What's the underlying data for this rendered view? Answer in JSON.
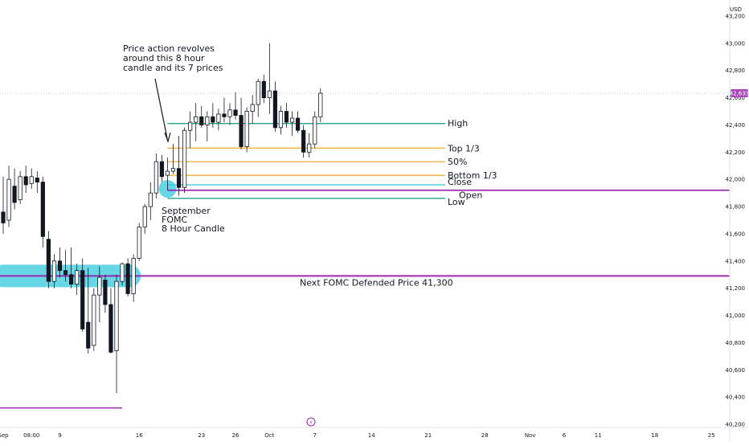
{
  "chart_data": {
    "type": "candlestick",
    "currency_label": "USD",
    "y_axis": {
      "min": 40200,
      "max": 43200,
      "ticks": [
        "40,200",
        "40,400",
        "40,600",
        "40,800",
        "41,000",
        "41,200",
        "41,400",
        "41,600",
        "41,800",
        "42,000",
        "42,200",
        "42,400",
        "42,600",
        "42,800",
        "43,000",
        "43,200"
      ]
    },
    "current_price": {
      "value": 42633,
      "label": "42,633"
    },
    "x_axis": {
      "labels": [
        {
          "text": "Sep",
          "bar": 0
        },
        {
          "text": "08:00",
          "bar": 5
        },
        {
          "text": "9",
          "bar": 10
        },
        {
          "text": "16",
          "bar": 24
        },
        {
          "text": "23",
          "bar": 35
        },
        {
          "text": "26",
          "bar": 41
        },
        {
          "text": "Oct",
          "bar": 47
        },
        {
          "text": "7",
          "bar": 55
        },
        {
          "text": "14",
          "bar": 65
        },
        {
          "text": "21",
          "bar": 75
        },
        {
          "text": "28",
          "bar": 85
        },
        {
          "text": "Nov",
          "bar": 93
        },
        {
          "text": "6",
          "bar": 99
        },
        {
          "text": "11",
          "bar": 105
        },
        {
          "text": "18",
          "bar": 115
        },
        {
          "text": "25",
          "bar": 125
        }
      ],
      "total_bars": 128
    },
    "candles": [
      {
        "o": 41760,
        "h": 42020,
        "l": 41600,
        "c": 41680
      },
      {
        "o": 41700,
        "h": 42100,
        "l": 41650,
        "c": 42000
      },
      {
        "o": 41950,
        "h": 42080,
        "l": 41780,
        "c": 41830
      },
      {
        "o": 41850,
        "h": 42060,
        "l": 41820,
        "c": 42020
      },
      {
        "o": 42020,
        "h": 42100,
        "l": 41900,
        "c": 41960
      },
      {
        "o": 41970,
        "h": 42080,
        "l": 41930,
        "c": 42020
      },
      {
        "o": 42010,
        "h": 42060,
        "l": 41900,
        "c": 41980
      },
      {
        "o": 41980,
        "h": 42020,
        "l": 41500,
        "c": 41580
      },
      {
        "o": 41560,
        "h": 41620,
        "l": 41200,
        "c": 41250
      },
      {
        "o": 41250,
        "h": 41450,
        "l": 41200,
        "c": 41400
      },
      {
        "o": 41400,
        "h": 41500,
        "l": 41280,
        "c": 41330
      },
      {
        "o": 41330,
        "h": 41480,
        "l": 41250,
        "c": 41300
      },
      {
        "o": 41300,
        "h": 41500,
        "l": 41200,
        "c": 41230
      },
      {
        "o": 41230,
        "h": 41380,
        "l": 41150,
        "c": 41330
      },
      {
        "o": 41330,
        "h": 41420,
        "l": 40880,
        "c": 40900
      },
      {
        "o": 40950,
        "h": 41350,
        "l": 40720,
        "c": 40760
      },
      {
        "o": 40780,
        "h": 41200,
        "l": 40740,
        "c": 41150
      },
      {
        "o": 41150,
        "h": 41360,
        "l": 40950,
        "c": 41280
      },
      {
        "o": 41260,
        "h": 41300,
        "l": 41020,
        "c": 41080
      },
      {
        "o": 41080,
        "h": 41200,
        "l": 40720,
        "c": 40730
      },
      {
        "o": 40740,
        "h": 41300,
        "l": 40430,
        "c": 41250
      },
      {
        "o": 41250,
        "h": 41390,
        "l": 41220,
        "c": 41380
      },
      {
        "o": 41380,
        "h": 41420,
        "l": 41140,
        "c": 41160
      },
      {
        "o": 41160,
        "h": 41450,
        "l": 41100,
        "c": 41420
      },
      {
        "o": 41420,
        "h": 41680,
        "l": 41400,
        "c": 41650
      },
      {
        "o": 41650,
        "h": 41820,
        "l": 41600,
        "c": 41800
      },
      {
        "o": 41800,
        "h": 41980,
        "l": 41700,
        "c": 41900
      },
      {
        "o": 41900,
        "h": 42190,
        "l": 41860,
        "c": 42130
      },
      {
        "o": 42130,
        "h": 42180,
        "l": 41980,
        "c": 42020
      },
      {
        "o": 42030,
        "h": 42160,
        "l": 41920,
        "c": 42060
      },
      {
        "o": 42060,
        "h": 42260,
        "l": 42040,
        "c": 42080
      },
      {
        "o": 42080,
        "h": 42320,
        "l": 41880,
        "c": 41940
      },
      {
        "o": 41940,
        "h": 42380,
        "l": 41900,
        "c": 42360
      },
      {
        "o": 42360,
        "h": 42500,
        "l": 42230,
        "c": 42420
      },
      {
        "o": 42420,
        "h": 42560,
        "l": 42280,
        "c": 42460
      },
      {
        "o": 42460,
        "h": 42540,
        "l": 42380,
        "c": 42400
      },
      {
        "o": 42400,
        "h": 42500,
        "l": 42280,
        "c": 42460
      },
      {
        "o": 42460,
        "h": 42560,
        "l": 42380,
        "c": 42420
      },
      {
        "o": 42420,
        "h": 42520,
        "l": 42360,
        "c": 42480
      },
      {
        "o": 42480,
        "h": 42600,
        "l": 42420,
        "c": 42460
      },
      {
        "o": 42460,
        "h": 42560,
        "l": 42400,
        "c": 42510
      },
      {
        "o": 42510,
        "h": 42640,
        "l": 42440,
        "c": 42470
      },
      {
        "o": 42470,
        "h": 42600,
        "l": 42220,
        "c": 42240
      },
      {
        "o": 42240,
        "h": 42530,
        "l": 42200,
        "c": 42500
      },
      {
        "o": 42500,
        "h": 42620,
        "l": 42410,
        "c": 42550
      },
      {
        "o": 42550,
        "h": 42740,
        "l": 42460,
        "c": 42720
      },
      {
        "o": 42720,
        "h": 42770,
        "l": 42560,
        "c": 42600
      },
      {
        "o": 42600,
        "h": 43000,
        "l": 42480,
        "c": 42650
      },
      {
        "o": 42650,
        "h": 42720,
        "l": 42350,
        "c": 42380
      },
      {
        "o": 42380,
        "h": 42540,
        "l": 42330,
        "c": 42500
      },
      {
        "o": 42500,
        "h": 42560,
        "l": 42380,
        "c": 42420
      },
      {
        "o": 42420,
        "h": 42500,
        "l": 42320,
        "c": 42450
      },
      {
        "o": 42450,
        "h": 42500,
        "l": 42340,
        "c": 42360
      },
      {
        "o": 42360,
        "h": 42400,
        "l": 42160,
        "c": 42200
      },
      {
        "o": 42200,
        "h": 42340,
        "l": 42160,
        "c": 42260
      },
      {
        "o": 42260,
        "h": 42500,
        "l": 42230,
        "c": 42460
      },
      {
        "o": 42460,
        "h": 42670,
        "l": 42420,
        "c": 42633
      }
    ],
    "candle_start_bar": 0,
    "levels": [
      {
        "name": "High",
        "value": 42410,
        "color": "#089981",
        "from_bar": 29,
        "to_bar": 78
      },
      {
        "name": "Top 1/3",
        "value": 42230,
        "color": "#f5a623",
        "from_bar": 29,
        "to_bar": 78
      },
      {
        "name": "50%",
        "value": 42130,
        "color": "#f5a623",
        "from_bar": 29,
        "to_bar": 78
      },
      {
        "name": "Bottom 1/3",
        "value": 42030,
        "color": "#f5a623",
        "from_bar": 29,
        "to_bar": 78
      },
      {
        "name": "Close",
        "value": 41960,
        "color": "#2fc7d6",
        "from_bar": 29,
        "to_bar": 78
      },
      {
        "name": "Open",
        "value": 41920,
        "color": "#9c27b0",
        "from_bar": 29,
        "to_bar": 128
      },
      {
        "name": "Low",
        "value": 41860,
        "color": "#089981",
        "from_bar": 29,
        "to_bar": 78
      }
    ],
    "defended_line": {
      "label": "Next FOMC Defended Price 41,300",
      "value": 41290,
      "color": "#9c27b0"
    },
    "lower_line": {
      "value": 40320,
      "color": "#9c27b0",
      "to_bar": 21
    },
    "highlight_zone": {
      "value": 41290,
      "color": "#4dd0e1",
      "from_bar": 0,
      "to_bar": 24
    },
    "highlight_candle": {
      "bar": 29,
      "value": 41930,
      "color": "#4dd0e1"
    },
    "annotations": {
      "top_note": [
        "Price action revolves",
        "around this 8 hour",
        "candle and its 7 prices"
      ],
      "candle_note": [
        "September",
        "FOMC",
        "8 Hour Candle"
      ]
    },
    "bottom_marker": {
      "symbol": "⚡",
      "color": "#9c27b0"
    }
  }
}
